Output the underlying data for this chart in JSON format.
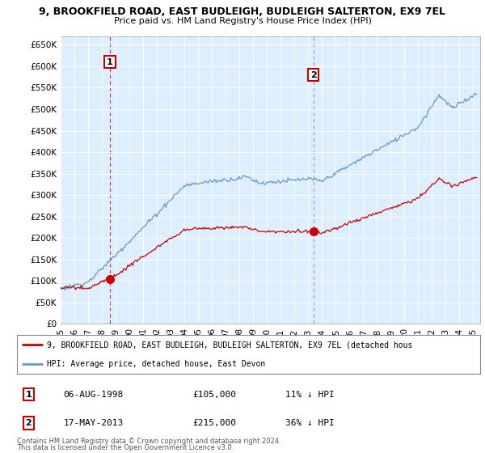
{
  "title": "9, BROOKFIELD ROAD, EAST BUDLEIGH, BUDLEIGH SALTERTON, EX9 7EL",
  "subtitle": "Price paid vs. HM Land Registry's House Price Index (HPI)",
  "ylabel_ticks": [
    "£0",
    "£50K",
    "£100K",
    "£150K",
    "£200K",
    "£250K",
    "£300K",
    "£350K",
    "£400K",
    "£450K",
    "£500K",
    "£550K",
    "£600K",
    "£650K"
  ],
  "ytick_values": [
    0,
    50000,
    100000,
    150000,
    200000,
    250000,
    300000,
    350000,
    400000,
    450000,
    500000,
    550000,
    600000,
    650000
  ],
  "ylim": [
    0,
    670000
  ],
  "xlim_start": 1995.0,
  "xlim_end": 2025.5,
  "sale1": {
    "year": 1998.58,
    "price": 105000,
    "label": "1",
    "date": "06-AUG-1998",
    "pct": "11% ↓ HPI"
  },
  "sale2": {
    "year": 2013.37,
    "price": 215000,
    "label": "2",
    "date": "17-MAY-2013",
    "pct": "36% ↓ HPI"
  },
  "red_color": "#cc0000",
  "blue_color": "#6699cc",
  "sale1_vline_color": "#cc0000",
  "sale2_vline_color": "#888888",
  "bg_color": "#ffffff",
  "chart_bg_color": "#ddeeff",
  "grid_color": "#ffffff",
  "legend_line1": "9, BROOKFIELD ROAD, EAST BUDLEIGH, BUDLEIGH SALTERTON, EX9 7EL (detached hous",
  "legend_line2": "HPI: Average price, detached house, East Devon",
  "footer1": "Contains HM Land Registry data © Crown copyright and database right 2024.",
  "footer2": "This data is licensed under the Open Government Licence v3.0.",
  "xtick_years": [
    1995,
    1996,
    1997,
    1998,
    1999,
    2000,
    2001,
    2002,
    2003,
    2004,
    2005,
    2006,
    2007,
    2008,
    2009,
    2010,
    2011,
    2012,
    2013,
    2014,
    2015,
    2016,
    2017,
    2018,
    2019,
    2020,
    2021,
    2022,
    2023,
    2024,
    2025
  ]
}
